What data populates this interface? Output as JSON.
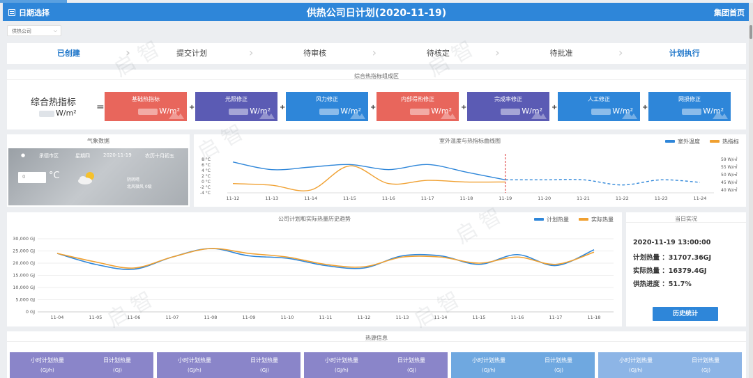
{
  "header": {
    "date_select_label": "日期选择",
    "title": "供热公司日计划(2020-11-19)",
    "home_label": "集团首页"
  },
  "company_select": {
    "value": "供热公司"
  },
  "steps": [
    {
      "label": "已创建",
      "active": true
    },
    {
      "label": "提交计划",
      "active": false
    },
    {
      "label": "待审核",
      "active": false
    },
    {
      "label": "待核定",
      "active": false
    },
    {
      "label": "待批准",
      "active": false
    },
    {
      "label": "计划执行",
      "active": true
    }
  ],
  "composite": {
    "panel_title": "综合热指标组成区",
    "label": "综合热指标",
    "unit": "W/m²",
    "equals": "=",
    "plus": "+",
    "cards": [
      {
        "title": "基础热指标",
        "unit": "W/m²",
        "color": "#e8665c"
      },
      {
        "title": "光照修正",
        "unit": "W/m²",
        "color": "#5b5bb4"
      },
      {
        "title": "风力修正",
        "unit": "W/m²",
        "color": "#2e86d9"
      },
      {
        "title": "内部得热修正",
        "unit": "W/m²",
        "color": "#e8665c"
      },
      {
        "title": "完成率修正",
        "unit": "W/m²",
        "color": "#5b5bb4"
      },
      {
        "title": "人工修正",
        "unit": "W/m²",
        "color": "#2e86d9"
      },
      {
        "title": "网损修正",
        "unit": "W/m²",
        "color": "#2e86d9"
      }
    ]
  },
  "weather": {
    "panel_title": "气象数据",
    "location": "承德市区",
    "weekday": "星期四",
    "date": "2020-11-19",
    "lunar": "农历十月初五",
    "temp_placeholder": "0",
    "temp_unit": "°C",
    "cond1": "阴转晴",
    "cond2": "北风微风 0级",
    "icon": "partly-cloudy-icon"
  },
  "temp_chart": {
    "title": "室外温度与热指标曲线图",
    "legend": [
      {
        "name": "室外温度",
        "color": "#2e86d9"
      },
      {
        "name": "热指标",
        "color": "#f0a030"
      }
    ],
    "x_labels": [
      "11-12",
      "11-13",
      "11-14",
      "11-15",
      "11-16",
      "11-17",
      "11-18",
      "11-19",
      "11-20",
      "11-21",
      "11-22",
      "11-23",
      "11-24"
    ],
    "y_left": [
      "8 °C",
      "6 °C",
      "4 °C",
      "2 °C",
      "0 °C",
      "-2 °C",
      "-4 °C"
    ],
    "y_right": [
      "59 W/㎡",
      "55 W/㎡",
      "50 W/㎡",
      "45 W/㎡",
      "40 W/㎡"
    ]
  },
  "hist_chart": {
    "title": "公司计划和实际热量历史趋势",
    "legend": [
      {
        "name": "计划热量",
        "color": "#2e86d9"
      },
      {
        "name": "实际热量",
        "color": "#f0a030"
      }
    ],
    "y_labels": [
      "30,000 GJ",
      "25,000 GJ",
      "20,000 GJ",
      "15,000 GJ",
      "10,000 GJ",
      "5,000 GJ",
      "0 GJ"
    ],
    "x_labels": [
      "11-04",
      "11-05",
      "11-06",
      "11-07",
      "11-08",
      "11-09",
      "11-10",
      "11-11",
      "11-12",
      "11-13",
      "11-14",
      "11-15",
      "11-16",
      "11-17",
      "11-18"
    ]
  },
  "chart_data": [
    {
      "type": "line",
      "title": "室外温度与热指标曲线图",
      "categories": [
        "11-12",
        "11-13",
        "11-14",
        "11-15",
        "11-16",
        "11-17",
        "11-18",
        "11-19",
        "11-20",
        "11-21",
        "11-22",
        "11-23",
        "11-24"
      ],
      "series": [
        {
          "name": "室外温度",
          "values": [
            7,
            4,
            5,
            6,
            4,
            6,
            3,
            0,
            0,
            0,
            -2,
            0,
            -1
          ],
          "dashed_from": "11-19"
        },
        {
          "name": "热指标",
          "values": [
            44,
            43,
            40,
            55,
            44,
            46,
            45,
            null,
            null,
            null,
            null,
            null,
            null
          ]
        }
      ],
      "ylim_left": [
        -4,
        8
      ],
      "ylim_right": [
        40,
        59
      ],
      "marker_line": "11-19"
    },
    {
      "type": "line",
      "title": "公司计划和实际热量历史趋势",
      "categories": [
        "11-04",
        "11-05",
        "11-06",
        "11-07",
        "11-08",
        "11-09",
        "11-10",
        "11-11",
        "11-12",
        "11-13",
        "11-14",
        "11-15",
        "11-16",
        "11-17",
        "11-18"
      ],
      "series": [
        {
          "name": "计划热量",
          "values": [
            24000,
            19500,
            17500,
            22500,
            26000,
            23000,
            22000,
            19000,
            18000,
            23000,
            23000,
            19500,
            23500,
            19000,
            25500
          ]
        },
        {
          "name": "实际热量",
          "values": [
            24000,
            20500,
            18000,
            22500,
            26000,
            24000,
            22500,
            19500,
            18500,
            22500,
            22500,
            20000,
            22500,
            19500,
            24500
          ]
        }
      ],
      "ylim": [
        0,
        30000
      ]
    }
  ],
  "today": {
    "panel_title": "当日实况",
    "time": "2020-11-19 13:00:00",
    "plan": "计划热量 ：31707.36GJ",
    "actual": "实际热量 ：16379.4GJ",
    "progress": "供热进度 ：51.7%",
    "history_button": "历史统计"
  },
  "source": {
    "panel_title": "热源信息",
    "cards": [
      {
        "a": "小时计划热量",
        "b": "日计划热量",
        "u1": "(GJ/h)",
        "u2": "(GJ)",
        "color": "#8a85c9"
      },
      {
        "a": "小时计划热量",
        "b": "日计划热量",
        "u1": "(GJ/h)",
        "u2": "(GJ)",
        "color": "#8a85c9"
      },
      {
        "a": "小时计划热量",
        "b": "日计划热量",
        "u1": "(GJ/h)",
        "u2": "(GJ)",
        "color": "#8a85c9"
      },
      {
        "a": "小时计划热量",
        "b": "日计划热量",
        "u1": "(GJ/h)",
        "u2": "(GJ)",
        "color": "#6fa8e0"
      },
      {
        "a": "小时计划热量",
        "b": "日计划热量",
        "u1": "(GJ/h)",
        "u2": "(GJ)",
        "color": "#8db5e6"
      }
    ]
  },
  "watermark": "启 智"
}
